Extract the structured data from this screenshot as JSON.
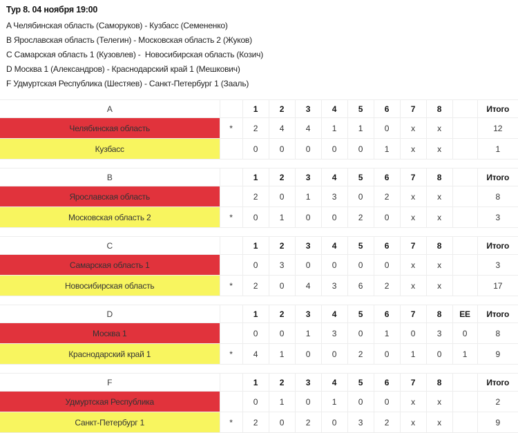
{
  "header": {
    "title": "Тур 8. 04 ноября 19:00"
  },
  "matchups": [
    "A Челябинская область (Саморуков) - Кузбасс (Семененко)",
    "B Ярославская область (Телегин) - Московская область 2 (Жуков)",
    "C Самарская область 1 (Кузовлев) -  Новосибирская область (Козич)",
    "D Москва 1 (Александров) - Краснодарский край 1 (Мешкович)",
    "F Удмуртская Республика (Шестяев) - Санкт-Петербург 1 (Зааль)"
  ],
  "table": {
    "end_labels": [
      "1",
      "2",
      "3",
      "4",
      "5",
      "6",
      "7",
      "8"
    ],
    "extra_end_label": "EE",
    "total_label": "Итого",
    "hammer_symbol": "*"
  },
  "colors": {
    "red_team": "#e1333c",
    "yellow_team": "#f8f55f"
  },
  "sheets": [
    {
      "letter": "A",
      "has_extra_end": false,
      "teams": [
        {
          "name": "Челябинская область",
          "color": "red",
          "hammer": true,
          "ends": [
            "2",
            "4",
            "4",
            "1",
            "1",
            "0",
            "x",
            "x"
          ],
          "extra_end": "",
          "total": "12"
        },
        {
          "name": "Кузбасс",
          "color": "yellow",
          "hammer": false,
          "ends": [
            "0",
            "0",
            "0",
            "0",
            "0",
            "1",
            "x",
            "x"
          ],
          "extra_end": "",
          "total": "1"
        }
      ]
    },
    {
      "letter": "B",
      "has_extra_end": false,
      "teams": [
        {
          "name": "Ярославская область",
          "color": "red",
          "hammer": false,
          "ends": [
            "2",
            "0",
            "1",
            "3",
            "0",
            "2",
            "x",
            "x"
          ],
          "extra_end": "",
          "total": "8"
        },
        {
          "name": "Московская область 2",
          "color": "yellow",
          "hammer": true,
          "ends": [
            "0",
            "1",
            "0",
            "0",
            "2",
            "0",
            "x",
            "x"
          ],
          "extra_end": "",
          "total": "3"
        }
      ]
    },
    {
      "letter": "C",
      "has_extra_end": false,
      "teams": [
        {
          "name": "Самарская область 1",
          "color": "red",
          "hammer": false,
          "ends": [
            "0",
            "3",
            "0",
            "0",
            "0",
            "0",
            "x",
            "x"
          ],
          "extra_end": "",
          "total": "3"
        },
        {
          "name": "Новосибирская область",
          "color": "yellow",
          "hammer": true,
          "ends": [
            "2",
            "0",
            "4",
            "3",
            "6",
            "2",
            "x",
            "x"
          ],
          "extra_end": "",
          "total": "17"
        }
      ]
    },
    {
      "letter": "D",
      "has_extra_end": true,
      "teams": [
        {
          "name": "Москва 1",
          "color": "red",
          "hammer": false,
          "ends": [
            "0",
            "0",
            "1",
            "3",
            "0",
            "1",
            "0",
            "3"
          ],
          "extra_end": "0",
          "total": "8"
        },
        {
          "name": "Краснодарский край 1",
          "color": "yellow",
          "hammer": true,
          "ends": [
            "4",
            "1",
            "0",
            "0",
            "2",
            "0",
            "1",
            "0"
          ],
          "extra_end": "1",
          "total": "9"
        }
      ]
    },
    {
      "letter": "F",
      "has_extra_end": false,
      "teams": [
        {
          "name": "Удмуртская Республика",
          "color": "red",
          "hammer": false,
          "ends": [
            "0",
            "1",
            "0",
            "1",
            "0",
            "0",
            "x",
            "x"
          ],
          "extra_end": "",
          "total": "2"
        },
        {
          "name": "Санкт-Петербург 1",
          "color": "yellow",
          "hammer": true,
          "ends": [
            "2",
            "0",
            "2",
            "0",
            "3",
            "2",
            "x",
            "x"
          ],
          "extra_end": "",
          "total": "9"
        }
      ]
    }
  ]
}
